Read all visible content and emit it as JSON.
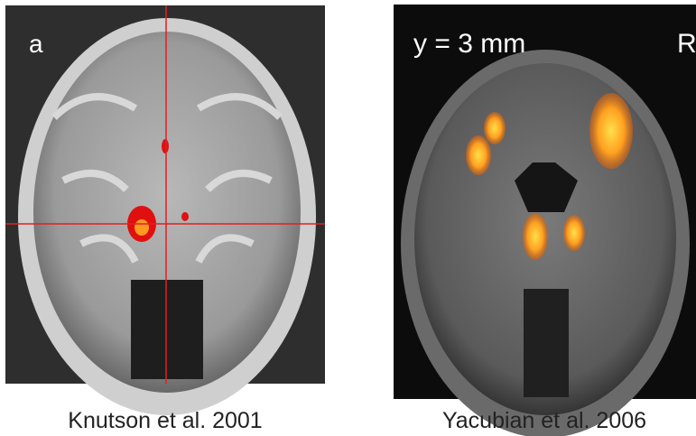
{
  "panels": [
    {
      "label": "a",
      "caption": "Knutson et al. 2001"
    },
    {
      "overlay_text": "y = 3 mm",
      "side_label": "R",
      "caption": "Yacubian et al. 2006"
    }
  ]
}
